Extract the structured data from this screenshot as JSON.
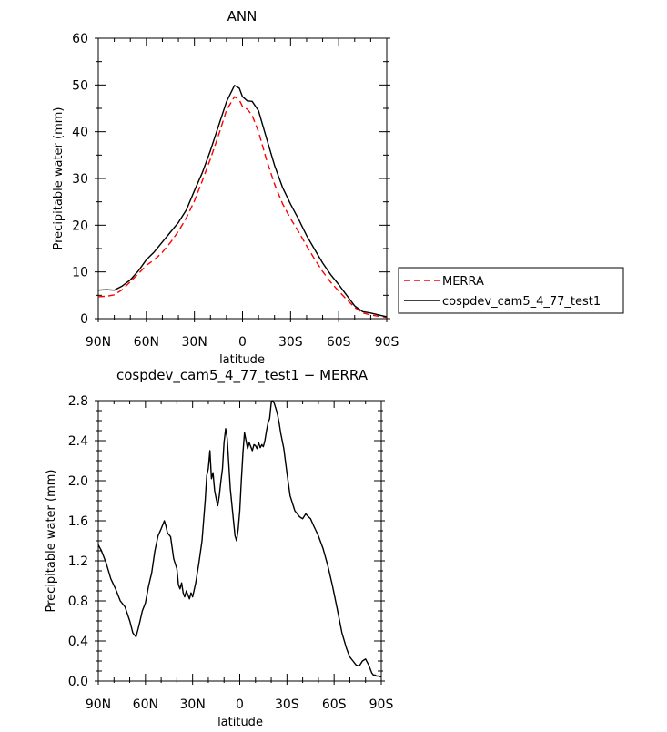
{
  "chart_data": [
    {
      "type": "line",
      "title": "ANN",
      "xlabel": "latitude",
      "ylabel": "Precipitable water (mm)",
      "x_ticks": [
        "90N",
        "60N",
        "30N",
        "0",
        "30S",
        "60S",
        "90S"
      ],
      "x_range": [
        90,
        -90
      ],
      "y_ticks": [
        "0",
        "10",
        "20",
        "30",
        "40",
        "50",
        "60"
      ],
      "ylim": [
        0,
        60
      ],
      "legend_placement": "right",
      "series": [
        {
          "name": "MERRA",
          "color": "#ff0000",
          "dash": "dashed",
          "x": [
            90,
            85,
            80,
            75,
            70,
            65,
            60,
            55,
            50,
            45,
            40,
            35,
            30,
            25,
            20,
            15,
            10,
            5,
            2,
            0,
            -3,
            -6,
            -10,
            -15,
            -20,
            -25,
            -30,
            -35,
            -40,
            -45,
            -50,
            -55,
            -60,
            -65,
            -70,
            -75,
            -80,
            -85,
            -90
          ],
          "values": [
            4.7,
            4.8,
            5.1,
            6.2,
            7.9,
            9.6,
            11.4,
            12.6,
            14.2,
            16.3,
            18.7,
            21.6,
            25.2,
            29.6,
            34.2,
            39.2,
            44.6,
            47.5,
            46.8,
            45.4,
            44.8,
            43.5,
            40.0,
            34.0,
            28.8,
            24.6,
            21.4,
            18.6,
            15.6,
            12.7,
            10.1,
            7.8,
            5.9,
            4.1,
            2.4,
            1.2,
            0.8,
            0.5,
            0.3
          ]
        },
        {
          "name": "cospdev_cam5_4_77_test1",
          "color": "#000000",
          "dash": "solid",
          "x": [
            90,
            85,
            80,
            75,
            70,
            65,
            60,
            55,
            50,
            45,
            40,
            35,
            30,
            25,
            20,
            15,
            10,
            5,
            2,
            0,
            -3,
            -6,
            -10,
            -15,
            -20,
            -25,
            -30,
            -35,
            -40,
            -45,
            -50,
            -55,
            -60,
            -65,
            -70,
            -75,
            -80,
            -85,
            -90
          ],
          "values": [
            6.1,
            6.2,
            6.1,
            7.0,
            8.3,
            10.2,
            12.6,
            14.3,
            16.4,
            18.5,
            20.6,
            23.3,
            27.4,
            31.3,
            36.0,
            41.2,
            46.4,
            49.9,
            49.3,
            47.5,
            46.6,
            46.5,
            44.5,
            38.6,
            32.8,
            28.1,
            24.5,
            21.3,
            17.8,
            14.8,
            11.9,
            9.4,
            7.3,
            5.0,
            2.7,
            1.5,
            1.2,
            0.8,
            0.4
          ]
        }
      ]
    },
    {
      "type": "line",
      "title": "cospdev_cam5_4_77_test1 − MERRA",
      "xlabel": "latitude",
      "ylabel": "Precipitable water (mm)",
      "x_ticks": [
        "90N",
        "60N",
        "30N",
        "0",
        "30S",
        "60S",
        "90S"
      ],
      "x_range": [
        90,
        -90
      ],
      "y_ticks": [
        "0.0",
        "0.4",
        "0.8",
        "1.2",
        "1.6",
        "2.0",
        "2.4",
        "2.8"
      ],
      "ylim": [
        0,
        2.8
      ],
      "series": [
        {
          "color": "#000000",
          "dash": "solid",
          "x": [
            90,
            88,
            85,
            82,
            79,
            76,
            73,
            70,
            68,
            66,
            65,
            64,
            62,
            60,
            58,
            56,
            54,
            52,
            50,
            48,
            47,
            46,
            44,
            42,
            40,
            39,
            38,
            37,
            36,
            35,
            34,
            33,
            32,
            31,
            30,
            28,
            26,
            24,
            22,
            21,
            20,
            19,
            18,
            17,
            16,
            15,
            14,
            13,
            12,
            11,
            10,
            9,
            8,
            6,
            4,
            3,
            2,
            1,
            0,
            -1,
            -2,
            -3,
            -4,
            -5,
            -6,
            -7,
            -8,
            -9,
            -10,
            -11,
            -12,
            -13,
            -14,
            -15,
            -16,
            -17,
            -18,
            -19,
            -20,
            -21,
            -22,
            -23,
            -24,
            -25,
            -26,
            -28,
            -30,
            -32,
            -35,
            -38,
            -40,
            -42,
            -43,
            -45,
            -47,
            -50,
            -53,
            -56,
            -59,
            -62,
            -65,
            -68,
            -70,
            -72,
            -74,
            -76,
            -78,
            -80,
            -82,
            -84,
            -85,
            -86,
            -87,
            -88,
            -90
          ],
          "values": [
            1.36,
            1.3,
            1.18,
            1.02,
            0.92,
            0.8,
            0.74,
            0.6,
            0.48,
            0.44,
            0.5,
            0.56,
            0.7,
            0.78,
            0.95,
            1.08,
            1.3,
            1.45,
            1.52,
            1.6,
            1.55,
            1.48,
            1.44,
            1.22,
            1.12,
            0.96,
            0.92,
            0.98,
            0.88,
            0.84,
            0.9,
            0.86,
            0.82,
            0.88,
            0.84,
            0.98,
            1.18,
            1.4,
            1.8,
            2.05,
            2.12,
            2.3,
            2.02,
            2.08,
            1.9,
            1.82,
            1.75,
            1.85,
            2.0,
            2.12,
            2.38,
            2.52,
            2.42,
            1.92,
            1.6,
            1.45,
            1.4,
            1.52,
            1.7,
            2.0,
            2.28,
            2.48,
            2.4,
            2.32,
            2.38,
            2.34,
            2.3,
            2.36,
            2.35,
            2.32,
            2.38,
            2.33,
            2.36,
            2.34,
            2.4,
            2.5,
            2.58,
            2.62,
            2.78,
            2.8,
            2.77,
            2.72,
            2.66,
            2.58,
            2.48,
            2.32,
            2.08,
            1.85,
            1.7,
            1.64,
            1.62,
            1.67,
            1.65,
            1.62,
            1.55,
            1.45,
            1.32,
            1.15,
            0.95,
            0.72,
            0.48,
            0.32,
            0.24,
            0.2,
            0.16,
            0.15,
            0.2,
            0.22,
            0.16,
            0.08,
            0.06,
            0.06,
            0.05,
            0.05,
            0.04
          ]
        }
      ]
    }
  ]
}
